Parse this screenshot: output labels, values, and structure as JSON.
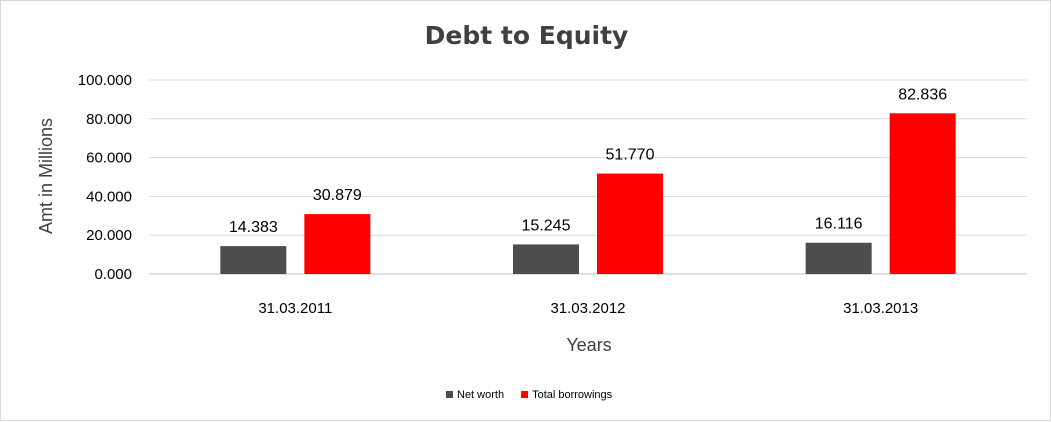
{
  "chart_data": {
    "type": "bar",
    "title": "Debt to Equity",
    "xlabel": "Years",
    "ylabel": "Amt in Millions",
    "categories": [
      "31.03.2011",
      "31.03.2012",
      "31.03.2013"
    ],
    "series": [
      {
        "name": "Net worth",
        "values": [
          14.383,
          15.245,
          16.116
        ],
        "labels": [
          "14.383",
          "15.245",
          "16.116"
        ],
        "color": "#4d4d4d"
      },
      {
        "name": "Total borrowings",
        "values": [
          30.879,
          51.77,
          82.836
        ],
        "labels": [
          "30.879",
          "51.770",
          "82.836"
        ],
        "color": "#ff0000"
      }
    ],
    "y_ticks": [
      "0.000",
      "20.000",
      "40.000",
      "60.000",
      "80.000",
      "100.000"
    ],
    "ylim": [
      0,
      100
    ],
    "grid": true,
    "legend_position": "bottom"
  }
}
